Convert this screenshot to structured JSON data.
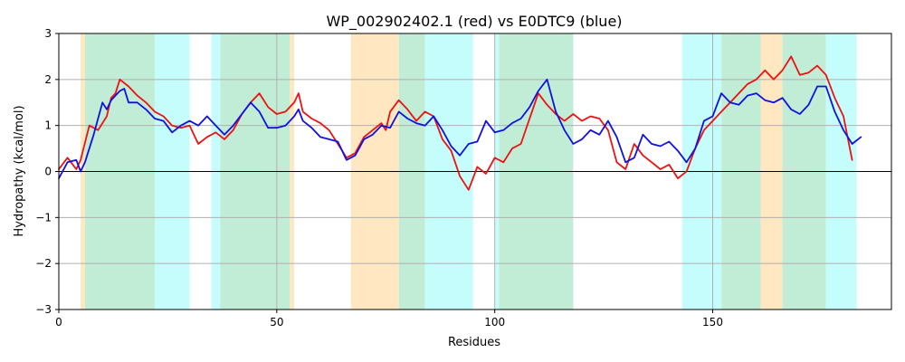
{
  "chart_data": {
    "type": "line",
    "title": "WP_002902402.1 (red) vs E0DTC9 (blue)",
    "xlabel": "Residues",
    "ylabel": "Hydropathy (kcal/mol)",
    "xlim": [
      0,
      191
    ],
    "ylim": [
      -3,
      3
    ],
    "xticks": [
      0,
      50,
      100,
      150
    ],
    "yticks": [
      -3,
      -2,
      -1,
      0,
      1,
      2,
      3
    ],
    "grid": true,
    "colors": {
      "red": "#ee1111",
      "blue": "#1111dd",
      "orange": "#ffe7c1",
      "cyan": "#c5fdfd",
      "green": "#c1edd6",
      "grid": "#b0b0b0"
    },
    "regions": [
      {
        "start": 5,
        "end": 6,
        "color": "orange"
      },
      {
        "start": 6,
        "end": 22,
        "color": "green"
      },
      {
        "start": 22,
        "end": 30,
        "color": "cyan"
      },
      {
        "start": 35,
        "end": 37,
        "color": "cyan"
      },
      {
        "start": 37,
        "end": 53,
        "color": "green"
      },
      {
        "start": 53,
        "end": 54,
        "color": "orange"
      },
      {
        "start": 67,
        "end": 78,
        "color": "orange"
      },
      {
        "start": 78,
        "end": 84,
        "color": "green"
      },
      {
        "start": 84,
        "end": 95,
        "color": "cyan"
      },
      {
        "start": 100,
        "end": 101,
        "color": "cyan"
      },
      {
        "start": 101,
        "end": 118,
        "color": "green"
      },
      {
        "start": 143,
        "end": 152,
        "color": "cyan"
      },
      {
        "start": 152,
        "end": 161,
        "color": "green"
      },
      {
        "start": 161,
        "end": 166,
        "color": "orange"
      },
      {
        "start": 166,
        "end": 176,
        "color": "green"
      },
      {
        "start": 176,
        "end": 183,
        "color": "cyan"
      }
    ],
    "series": [
      {
        "color": "red",
        "x": [
          0,
          2,
          4,
          5,
          7,
          9,
          11,
          12,
          13,
          14,
          16,
          18,
          20,
          22,
          24,
          26,
          28,
          30,
          32,
          34,
          36,
          38,
          40,
          42,
          44,
          46,
          48,
          50,
          52,
          53,
          54,
          55,
          56,
          58,
          60,
          62,
          64,
          66,
          68,
          70,
          72,
          74,
          75,
          76,
          78,
          80,
          82,
          84,
          86,
          88,
          90,
          92,
          94,
          96,
          98,
          100,
          102,
          104,
          106,
          108,
          110,
          112,
          114,
          116,
          118,
          120,
          122,
          124,
          126,
          128,
          130,
          132,
          134,
          136,
          138,
          140,
          142,
          144,
          146,
          148,
          150,
          152,
          154,
          156,
          158,
          160,
          162,
          164,
          166,
          168,
          170,
          172,
          174,
          176,
          178,
          180,
          182
        ],
        "values": [
          0.05,
          0.3,
          0.05,
          0.25,
          1.0,
          0.9,
          1.2,
          1.6,
          1.7,
          2.0,
          1.85,
          1.65,
          1.5,
          1.3,
          1.2,
          1.0,
          0.95,
          1.0,
          0.6,
          0.75,
          0.85,
          0.7,
          0.9,
          1.25,
          1.5,
          1.7,
          1.4,
          1.25,
          1.3,
          1.4,
          1.5,
          1.7,
          1.3,
          1.15,
          1.05,
          0.9,
          0.6,
          0.3,
          0.4,
          0.75,
          0.9,
          1.05,
          0.9,
          1.3,
          1.55,
          1.35,
          1.1,
          1.3,
          1.2,
          0.7,
          0.45,
          -0.1,
          -0.4,
          0.1,
          -0.05,
          0.3,
          0.2,
          0.5,
          0.6,
          1.15,
          1.7,
          1.45,
          1.25,
          1.1,
          1.25,
          1.1,
          1.2,
          1.15,
          0.9,
          0.2,
          0.05,
          0.6,
          0.35,
          0.2,
          0.05,
          0.15,
          -0.15,
          0.0,
          0.5,
          0.9,
          1.1,
          1.3,
          1.5,
          1.7,
          1.9,
          2.0,
          2.2,
          2.0,
          2.2,
          2.5,
          2.1,
          2.15,
          2.3,
          2.1,
          1.6,
          1.2,
          0.25
        ]
      },
      {
        "color": "blue",
        "x": [
          0,
          2,
          4,
          5,
          6,
          8,
          10,
          11,
          12,
          14,
          15,
          16,
          18,
          20,
          22,
          24,
          26,
          28,
          30,
          32,
          34,
          36,
          38,
          40,
          42,
          44,
          46,
          48,
          50,
          52,
          54,
          55,
          56,
          58,
          60,
          62,
          64,
          66,
          68,
          70,
          72,
          74,
          76,
          78,
          80,
          82,
          84,
          86,
          88,
          90,
          92,
          94,
          96,
          98,
          100,
          102,
          104,
          106,
          108,
          110,
          112,
          114,
          116,
          118,
          120,
          122,
          124,
          126,
          128,
          130,
          132,
          134,
          136,
          138,
          140,
          142,
          144,
          146,
          148,
          150,
          152,
          154,
          156,
          158,
          160,
          162,
          164,
          166,
          168,
          170,
          172,
          174,
          176,
          178,
          180,
          182,
          184
        ],
        "values": [
          -0.15,
          0.2,
          0.25,
          0.0,
          0.2,
          0.8,
          1.5,
          1.35,
          1.55,
          1.75,
          1.8,
          1.5,
          1.5,
          1.35,
          1.15,
          1.1,
          0.85,
          1.0,
          1.1,
          1.0,
          1.2,
          1.0,
          0.8,
          1.0,
          1.25,
          1.5,
          1.3,
          0.95,
          0.95,
          1.0,
          1.2,
          1.35,
          1.1,
          0.95,
          0.75,
          0.7,
          0.65,
          0.25,
          0.35,
          0.7,
          0.8,
          1.0,
          0.95,
          1.3,
          1.15,
          1.05,
          1.0,
          1.2,
          0.9,
          0.55,
          0.35,
          0.6,
          0.65,
          1.1,
          0.85,
          0.9,
          1.05,
          1.15,
          1.4,
          1.75,
          2.0,
          1.3,
          0.9,
          0.6,
          0.7,
          0.9,
          0.8,
          1.1,
          0.75,
          0.2,
          0.3,
          0.8,
          0.6,
          0.55,
          0.65,
          0.45,
          0.2,
          0.5,
          1.1,
          1.2,
          1.7,
          1.5,
          1.45,
          1.65,
          1.7,
          1.55,
          1.5,
          1.6,
          1.35,
          1.25,
          1.45,
          1.85,
          1.85,
          1.3,
          0.9,
          0.6,
          0.75
        ]
      }
    ]
  }
}
